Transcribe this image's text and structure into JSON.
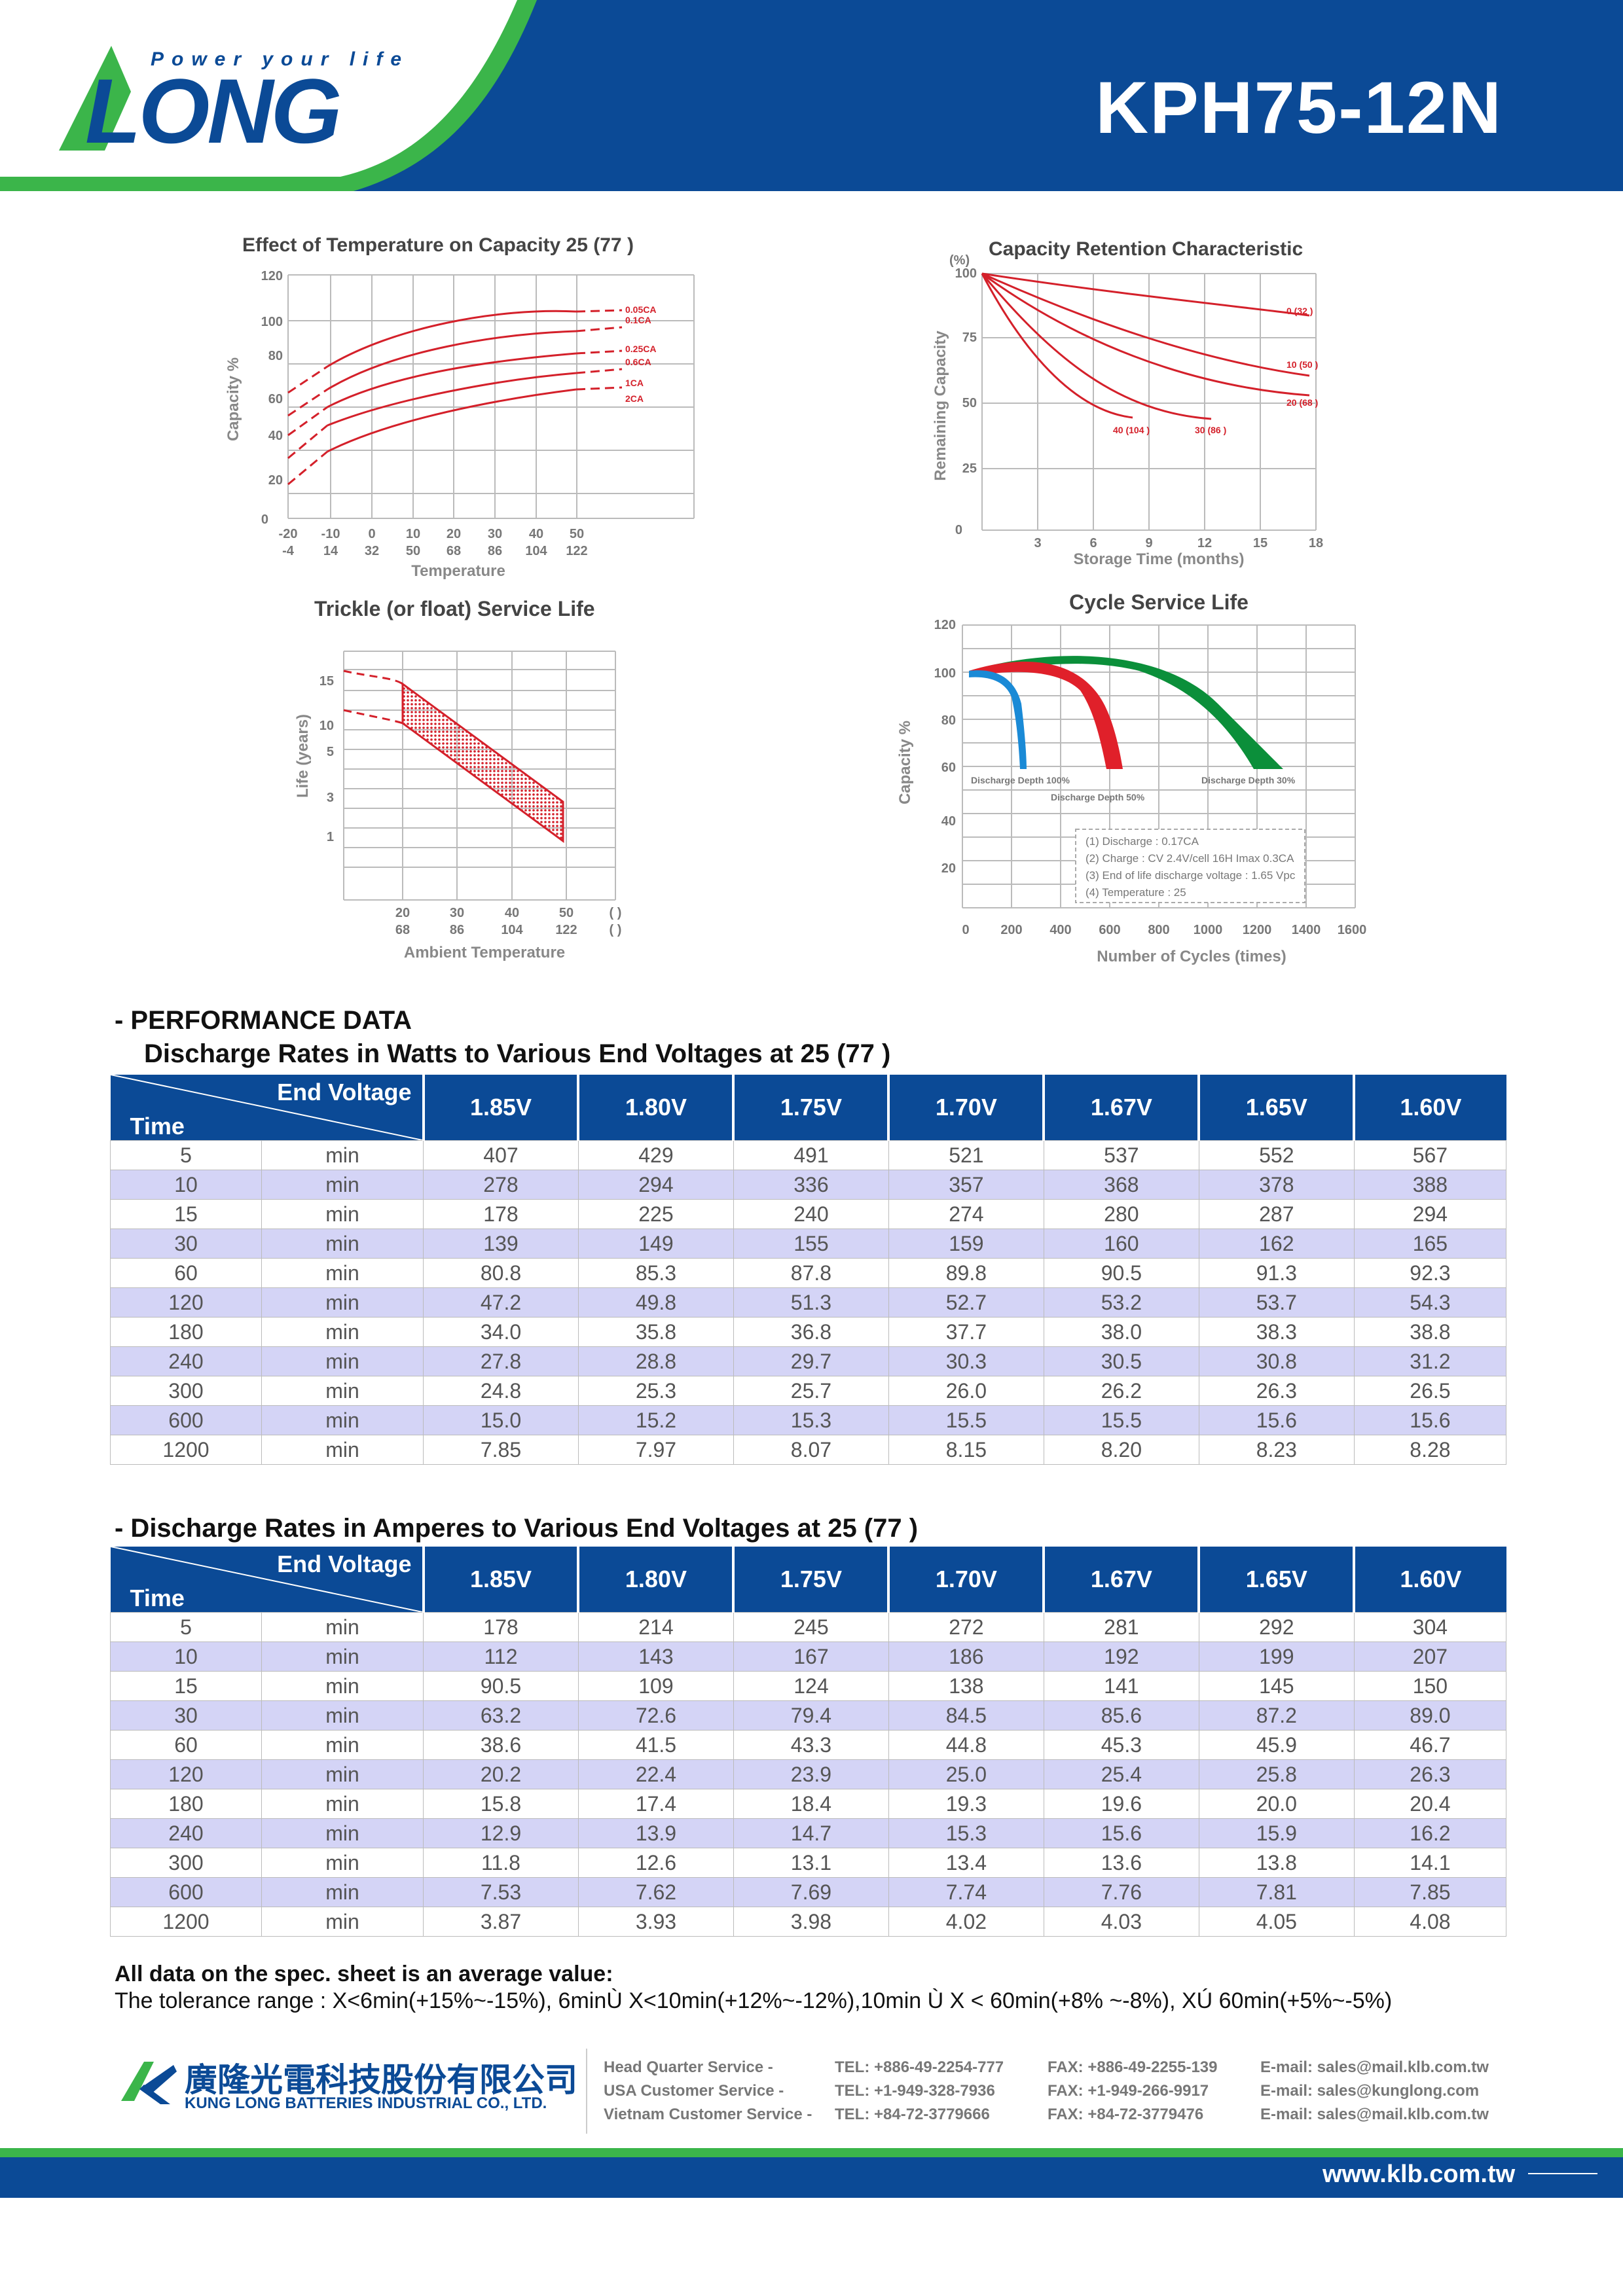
{
  "header": {
    "tagline": "Power your life",
    "logo_text": "LONG",
    "model": "KPH75-12N",
    "colors": {
      "blue": "#0b4a96",
      "green": "#3bb54a"
    }
  },
  "charts": {
    "temperature": {
      "title": "Effect of Temperature on Capacity  25    (77    )",
      "ylabel": "Capacity %",
      "xlabel": "Temperature",
      "yticks": [
        "120",
        "100",
        "80",
        "60",
        "40",
        "20",
        "0"
      ],
      "xticks_c": [
        "-20",
        "-10",
        "0",
        "10",
        "20",
        "30",
        "40",
        "50"
      ],
      "xticks_f": [
        "-4",
        "14",
        "32",
        "50",
        "68",
        "86",
        "104",
        "122"
      ],
      "series_labels": [
        "0.05CA",
        "0.1CA",
        "0.25CA",
        "0.6CA",
        "1CA",
        "2CA"
      ]
    },
    "retention": {
      "title": "Capacity Retention Characteristic",
      "unit": "(%)",
      "ylabel": "Remaining Capacity",
      "xlabel": "Storage Time (months)",
      "yticks": [
        "100",
        "75",
        "50",
        "25",
        "0"
      ],
      "xticks": [
        "3",
        "6",
        "9",
        "12",
        "15",
        "18"
      ],
      "series_labels": [
        "0   (32   )",
        "10   (50   )",
        "20   (68   )",
        "40   (104   )",
        "30   (86   )"
      ]
    },
    "trickle": {
      "title": "Trickle (or float) Service Life",
      "ylabel": "Life (years)",
      "xlabel": "Ambient Temperature",
      "yticks": [
        "15",
        "10",
        "5",
        "3",
        "1"
      ],
      "xticks_c": [
        "20",
        "30",
        "40",
        "50",
        "(     )"
      ],
      "xticks_f": [
        "68",
        "86",
        "104",
        "122",
        "(     )"
      ]
    },
    "cycle": {
      "title": "Cycle Service Life",
      "ylabel": "Capacity %",
      "xlabel": "Number of Cycles (times)",
      "yticks": [
        "120",
        "100",
        "80",
        "60",
        "40",
        "20"
      ],
      "xticks": [
        "0",
        "200",
        "400",
        "600",
        "800",
        "1000",
        "1200",
        "1400",
        "1600"
      ],
      "series_labels": [
        "Discharge Depth 100%",
        "Discharge Depth 50%",
        "Discharge Depth 30%"
      ],
      "notes": [
        "(1) Discharge : 0.17CA",
        "(2) Charge : CV 2.4V/cell    16H Imax 0.3CA",
        "(3) End of life discharge voltage : 1.65 Vpc",
        "(4) Temperature : 25"
      ]
    }
  },
  "perf": {
    "heading": "- PERFORMANCE DATA",
    "watts_title": "Discharge Rates in Watts to Various End Voltages at 25    (77    )",
    "amps_title": "- Discharge Rates in Amperes to Various End Voltages at 25    (77    )",
    "end_voltage_label": "End Voltage",
    "time_label": "Time",
    "voltages": [
      "1.85V",
      "1.80V",
      "1.75V",
      "1.70V",
      "1.67V",
      "1.65V",
      "1.60V"
    ],
    "unit": "min",
    "watts_rows": [
      {
        "t": "5",
        "v": [
          "407",
          "429",
          "491",
          "521",
          "537",
          "552",
          "567"
        ]
      },
      {
        "t": "10",
        "v": [
          "278",
          "294",
          "336",
          "357",
          "368",
          "378",
          "388"
        ]
      },
      {
        "t": "15",
        "v": [
          "178",
          "225",
          "240",
          "274",
          "280",
          "287",
          "294"
        ]
      },
      {
        "t": "30",
        "v": [
          "139",
          "149",
          "155",
          "159",
          "160",
          "162",
          "165"
        ]
      },
      {
        "t": "60",
        "v": [
          "80.8",
          "85.3",
          "87.8",
          "89.8",
          "90.5",
          "91.3",
          "92.3"
        ]
      },
      {
        "t": "120",
        "v": [
          "47.2",
          "49.8",
          "51.3",
          "52.7",
          "53.2",
          "53.7",
          "54.3"
        ]
      },
      {
        "t": "180",
        "v": [
          "34.0",
          "35.8",
          "36.8",
          "37.7",
          "38.0",
          "38.3",
          "38.8"
        ]
      },
      {
        "t": "240",
        "v": [
          "27.8",
          "28.8",
          "29.7",
          "30.3",
          "30.5",
          "30.8",
          "31.2"
        ]
      },
      {
        "t": "300",
        "v": [
          "24.8",
          "25.3",
          "25.7",
          "26.0",
          "26.2",
          "26.3",
          "26.5"
        ]
      },
      {
        "t": "600",
        "v": [
          "15.0",
          "15.2",
          "15.3",
          "15.5",
          "15.5",
          "15.6",
          "15.6"
        ]
      },
      {
        "t": "1200",
        "v": [
          "7.85",
          "7.97",
          "8.07",
          "8.15",
          "8.20",
          "8.23",
          "8.28"
        ]
      }
    ],
    "amps_rows": [
      {
        "t": "5",
        "v": [
          "178",
          "214",
          "245",
          "272",
          "281",
          "292",
          "304"
        ]
      },
      {
        "t": "10",
        "v": [
          "112",
          "143",
          "167",
          "186",
          "192",
          "199",
          "207"
        ]
      },
      {
        "t": "15",
        "v": [
          "90.5",
          "109",
          "124",
          "138",
          "141",
          "145",
          "150"
        ]
      },
      {
        "t": "30",
        "v": [
          "63.2",
          "72.6",
          "79.4",
          "84.5",
          "85.6",
          "87.2",
          "89.0"
        ]
      },
      {
        "t": "60",
        "v": [
          "38.6",
          "41.5",
          "43.3",
          "44.8",
          "45.3",
          "45.9",
          "46.7"
        ]
      },
      {
        "t": "120",
        "v": [
          "20.2",
          "22.4",
          "23.9",
          "25.0",
          "25.4",
          "25.8",
          "26.3"
        ]
      },
      {
        "t": "180",
        "v": [
          "15.8",
          "17.4",
          "18.4",
          "19.3",
          "19.6",
          "20.0",
          "20.4"
        ]
      },
      {
        "t": "240",
        "v": [
          "12.9",
          "13.9",
          "14.7",
          "15.3",
          "15.6",
          "15.9",
          "16.2"
        ]
      },
      {
        "t": "300",
        "v": [
          "11.8",
          "12.6",
          "13.1",
          "13.4",
          "13.6",
          "13.8",
          "14.1"
        ]
      },
      {
        "t": "600",
        "v": [
          "7.53",
          "7.62",
          "7.69",
          "7.74",
          "7.76",
          "7.81",
          "7.85"
        ]
      },
      {
        "t": "1200",
        "v": [
          "3.87",
          "3.93",
          "3.98",
          "4.02",
          "4.03",
          "4.05",
          "4.08"
        ]
      }
    ],
    "note_bold": "All data on the spec. sheet is an average value:",
    "note_text": "The tolerance range : X<6min(+15%~-15%), 6minÙ X<10min(+12%~-12%),10min Ù X < 60min(+8% ~-8%), XÚ 60min(+5%~-5%)"
  },
  "footer": {
    "company_cn": "廣隆光電科技股份有限公司",
    "company_en": "KUNG LONG BATTERIES INDUSTRIAL CO., LTD.",
    "contacts": [
      {
        "label": "Head Quarter Service -",
        "tel": "TEL: +886-49-2254-777",
        "fax": "FAX: +886-49-2255-139",
        "email": "E-mail: sales@mail.klb.com.tw"
      },
      {
        "label": "USA Customer Service -",
        "tel": "TEL: +1-949-328-7936",
        "fax": "FAX: +1-949-266-9917",
        "email": "E-mail: sales@kunglong.com"
      },
      {
        "label": "Vietnam Customer Service -",
        "tel": "TEL: +84-72-3779666",
        "fax": "FAX: +84-72-3779476",
        "email": "E-mail: sales@mail.klb.com.tw"
      }
    ],
    "website": "www.klb.com.tw"
  }
}
